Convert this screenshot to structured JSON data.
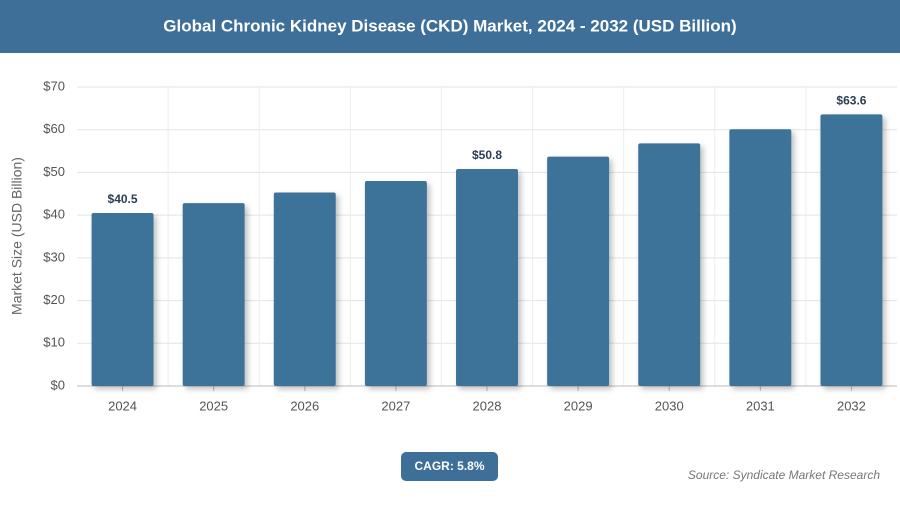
{
  "chart_data": {
    "type": "bar",
    "title": "Global Chronic Kidney Disease (CKD) Market, 2024 - 2032 (USD Billion)",
    "y_label": "Market Size (USD Billion)",
    "categories": [
      "2024",
      "2025",
      "2026",
      "2027",
      "2028",
      "2029",
      "2030",
      "2031",
      "2032"
    ],
    "values": [
      40.5,
      42.8,
      45.3,
      48.0,
      50.8,
      53.7,
      56.8,
      60.1,
      63.6
    ],
    "value_labels": [
      "$40.5",
      null,
      null,
      null,
      "$50.8",
      null,
      null,
      null,
      "$63.6"
    ],
    "color": "#3d7299",
    "ylim": [
      0,
      70
    ],
    "yticks": [
      {
        "value": 0,
        "label": "$0"
      },
      {
        "value": 10,
        "label": "$10"
      },
      {
        "value": 20,
        "label": "$20"
      },
      {
        "value": 30,
        "label": "$30"
      },
      {
        "value": 40,
        "label": "$40"
      },
      {
        "value": 50,
        "label": "$50"
      },
      {
        "value": 60,
        "label": "$60"
      },
      {
        "value": 70,
        "label": "$70"
      }
    ],
    "grid": true,
    "cagr": "CAGR: 5.8%",
    "source": "Source: Syndicate Market Research"
  }
}
